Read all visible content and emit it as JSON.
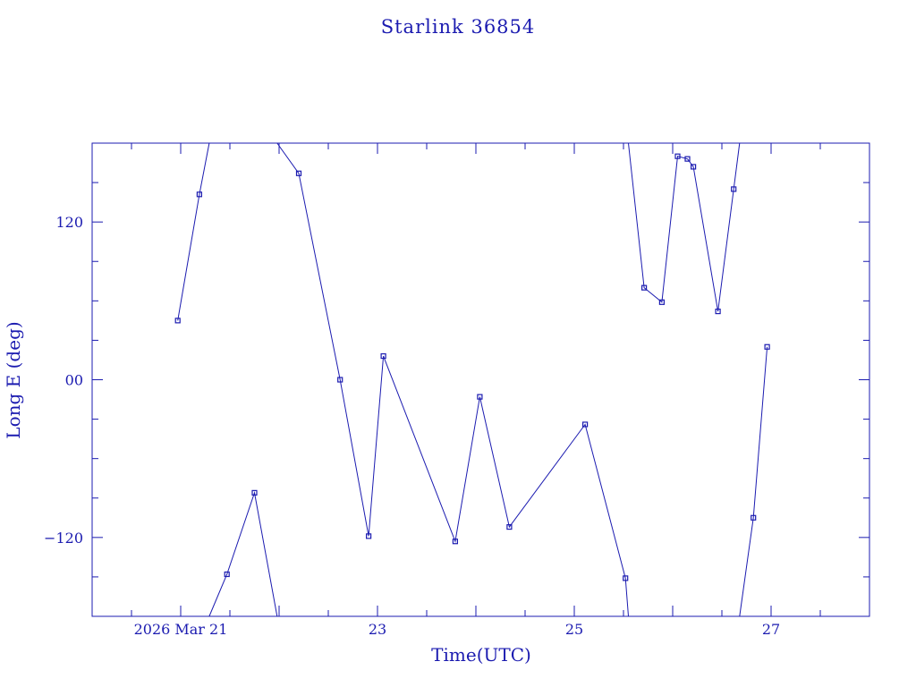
{
  "chart_data": {
    "type": "line",
    "title": "Starlink 36854",
    "xlabel": "Time(UTC)",
    "ylabel": "Long E (deg)",
    "x_unit": "days (March 2026)",
    "xlim": [
      20.1,
      28.0
    ],
    "ylim": [
      -180,
      180
    ],
    "x_ticks": [
      {
        "value": 21,
        "label": "2026 Mar 21"
      },
      {
        "value": 23,
        "label": "23"
      },
      {
        "value": 25,
        "label": "25"
      },
      {
        "value": 27,
        "label": "27"
      }
    ],
    "y_ticks": [
      {
        "value": 120,
        "label": "120"
      },
      {
        "value": 0,
        "label": "00"
      },
      {
        "value": -120,
        "label": "−120"
      }
    ],
    "color": "#1b1bb0",
    "grid": false,
    "series": [
      {
        "points": [
          [
            20.97,
            45
          ],
          [
            21.19,
            141
          ],
          [
            21.29,
            180
          ],
          [
            21.29,
            -180
          ],
          [
            21.47,
            -148
          ],
          [
            21.75,
            -86
          ],
          [
            21.98,
            -180
          ],
          [
            21.98,
            180
          ],
          [
            22.2,
            157
          ],
          [
            22.62,
            0
          ],
          [
            22.91,
            -119
          ],
          [
            23.06,
            18
          ],
          [
            23.79,
            -123
          ],
          [
            24.04,
            -13
          ],
          [
            24.34,
            -112
          ],
          [
            25.11,
            -34
          ],
          [
            25.52,
            -151
          ],
          [
            25.55,
            -180
          ],
          [
            25.55,
            180
          ],
          [
            25.71,
            70
          ],
          [
            25.89,
            59
          ],
          [
            26.05,
            170
          ],
          [
            26.15,
            168
          ],
          [
            26.21,
            162
          ],
          [
            26.46,
            52
          ],
          [
            26.62,
            145
          ],
          [
            26.68,
            180
          ],
          [
            26.68,
            -180
          ],
          [
            26.82,
            -105
          ],
          [
            26.96,
            25
          ]
        ]
      }
    ]
  }
}
